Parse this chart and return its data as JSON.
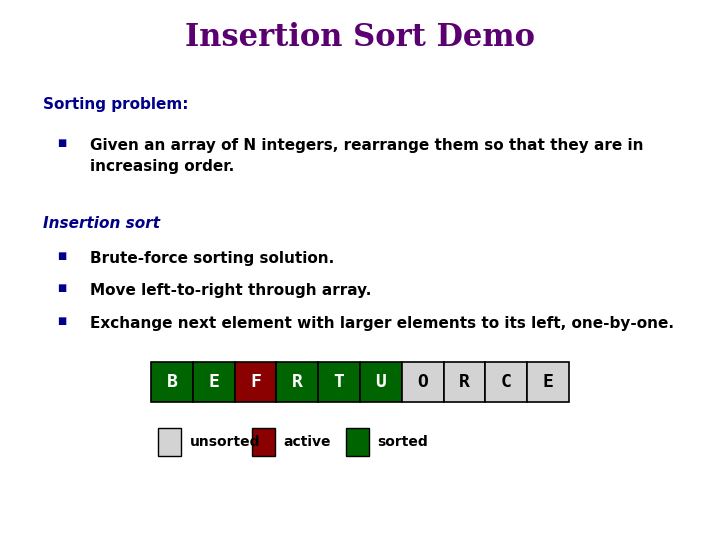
{
  "title": "Insertion Sort Demo",
  "title_color": "#5B0070",
  "title_fontsize": 22,
  "title_font": "serif",
  "bg_color": "#ffffff",
  "section1_header": "Sorting problem:",
  "section1_bullet": "Given an array of N integers, rearrange them so that they are in\nincreasing order.",
  "section2_header": "Insertion sort",
  "section2_bullets": [
    "Brute-force sorting solution.",
    "Move left-to-right through array.",
    "Exchange next element with larger elements to its left, one-by-one."
  ],
  "header_color": "#00008B",
  "header_fontsize": 11,
  "bullet_color": "#000000",
  "bullet_fontsize": 11,
  "array_letters": [
    "B",
    "E",
    "F",
    "R",
    "T",
    "U",
    "O",
    "R",
    "C",
    "E"
  ],
  "array_colors": [
    "#006400",
    "#006400",
    "#8B0000",
    "#006400",
    "#006400",
    "#006400",
    "#d3d3d3",
    "#d3d3d3",
    "#d3d3d3",
    "#d3d3d3"
  ],
  "array_text_colors": [
    "#ffffff",
    "#ffffff",
    "#ffffff",
    "#ffffff",
    "#ffffff",
    "#ffffff",
    "#000000",
    "#000000",
    "#000000",
    "#000000"
  ],
  "legend_items": [
    {
      "label": "unsorted",
      "color": "#d3d3d3"
    },
    {
      "label": "active",
      "color": "#8B0000"
    },
    {
      "label": "sorted",
      "color": "#006400"
    }
  ]
}
